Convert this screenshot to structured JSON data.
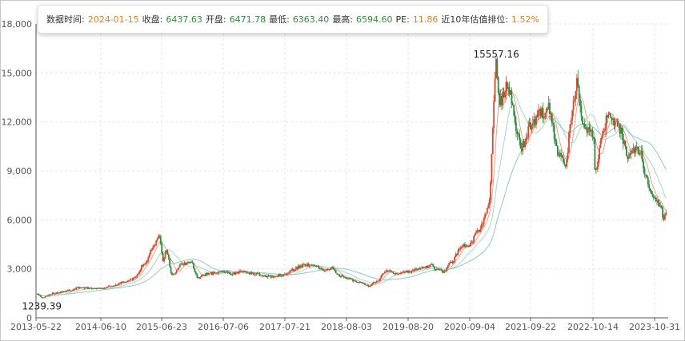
{
  "tooltip": {
    "date_label": "数据时间:",
    "date_value": "2024-01-15",
    "close_label": "收盘:",
    "close_value": "6437.63",
    "open_label": "开盘:",
    "open_value": "6471.78",
    "low_label": "最低:",
    "low_value": "6363.40",
    "high_label": "最高:",
    "high_value": "6594.60",
    "pe_label": "PE:",
    "pe_value": "11.86",
    "rank_label": "近10年估值排位:",
    "rank_value": "1.52%"
  },
  "colors": {
    "up": "#d64a2e",
    "down": "#2e8b3f",
    "ma_short": "#f0a090",
    "ma_mid": "#a8d8c8",
    "ma_long": "#8ecbc0",
    "grid": "#e6e6e6",
    "tooltip_orange": "#e0821e",
    "tooltip_green": "#2f8f3a"
  },
  "chart_data": {
    "type": "candlestick",
    "title": "",
    "xlabel": "",
    "ylabel": "",
    "ylim": [
      0,
      18000
    ],
    "y_ticks": [
      "0",
      "3,000",
      "6,000",
      "9,000",
      "12,000",
      "15,000",
      "18,000"
    ],
    "x_tick_labels": [
      "2013-05-22",
      "2014-06-10",
      "2015-06-23",
      "2016-07-06",
      "2017-07-21",
      "2018-08-03",
      "2019-08-20",
      "2020-09-04",
      "2021-09-22",
      "2022-10-14",
      "2023-10-31"
    ],
    "grid": true,
    "annotations": [
      {
        "text": "15557.16",
        "date": "2021-02-18",
        "value": 15557.16,
        "kind": "max"
      },
      {
        "text": "1239.39",
        "date": "2013-06-25",
        "value": 1239.39,
        "kind": "min"
      }
    ],
    "anchors": [
      [
        "2013-05-22",
        1500
      ],
      [
        "2013-06-25",
        1250
      ],
      [
        "2013-09-01",
        1500
      ],
      [
        "2013-12-01",
        1650
      ],
      [
        "2014-02-01",
        1850
      ],
      [
        "2014-06-10",
        1780
      ],
      [
        "2014-09-01",
        2000
      ],
      [
        "2014-11-01",
        2200
      ],
      [
        "2015-01-01",
        2400
      ],
      [
        "2015-03-01",
        3200
      ],
      [
        "2015-05-01",
        4300
      ],
      [
        "2015-06-10",
        5000
      ],
      [
        "2015-07-01",
        3500
      ],
      [
        "2015-07-20",
        4100
      ],
      [
        "2015-08-26",
        2700
      ],
      [
        "2015-11-01",
        3300
      ],
      [
        "2015-12-20",
        3400
      ],
      [
        "2016-02-01",
        2450
      ],
      [
        "2016-04-01",
        2700
      ],
      [
        "2016-07-06",
        2850
      ],
      [
        "2016-09-01",
        2700
      ],
      [
        "2016-11-01",
        2850
      ],
      [
        "2017-01-01",
        2700
      ],
      [
        "2017-05-01",
        2500
      ],
      [
        "2017-07-21",
        2650
      ],
      [
        "2017-09-01",
        2900
      ],
      [
        "2017-11-01",
        3200
      ],
      [
        "2018-01-20",
        3250
      ],
      [
        "2018-03-01",
        2950
      ],
      [
        "2018-05-01",
        3050
      ],
      [
        "2018-06-20",
        2600
      ],
      [
        "2018-08-03",
        2450
      ],
      [
        "2018-10-20",
        2150
      ],
      [
        "2018-12-20",
        1950
      ],
      [
        "2019-02-01",
        2200
      ],
      [
        "2019-04-10",
        2900
      ],
      [
        "2019-06-10",
        2750
      ],
      [
        "2019-08-20",
        2850
      ],
      [
        "2019-12-01",
        3100
      ],
      [
        "2020-01-20",
        3250
      ],
      [
        "2020-02-04",
        2950
      ],
      [
        "2020-03-23",
        2850
      ],
      [
        "2020-05-20",
        3450
      ],
      [
        "2020-07-10",
        4400
      ],
      [
        "2020-09-04",
        4500
      ],
      [
        "2020-10-20",
        5200
      ],
      [
        "2020-12-31",
        6700
      ],
      [
        "2021-02-18",
        15557
      ],
      [
        "2021-03-10",
        13200
      ],
      [
        "2021-05-01",
        14200
      ],
      [
        "2021-07-28",
        10500
      ],
      [
        "2021-09-22",
        11800
      ],
      [
        "2021-12-01",
        12500
      ],
      [
        "2022-01-10",
        12800
      ],
      [
        "2022-03-15",
        10200
      ],
      [
        "2022-04-26",
        9200
      ],
      [
        "2022-06-01",
        12200
      ],
      [
        "2022-07-05",
        14300
      ],
      [
        "2022-08-10",
        12000
      ],
      [
        "2022-10-14",
        11200
      ],
      [
        "2022-10-31",
        8800
      ],
      [
        "2022-12-01",
        11000
      ],
      [
        "2023-01-20",
        12500
      ],
      [
        "2023-03-20",
        11600
      ],
      [
        "2023-05-20",
        10000
      ],
      [
        "2023-07-31",
        10300
      ],
      [
        "2023-08-31",
        8800
      ],
      [
        "2023-10-31",
        7200
      ],
      [
        "2023-12-01",
        6900
      ],
      [
        "2023-12-25",
        6200
      ],
      [
        "2024-01-15",
        6437.63
      ]
    ]
  }
}
